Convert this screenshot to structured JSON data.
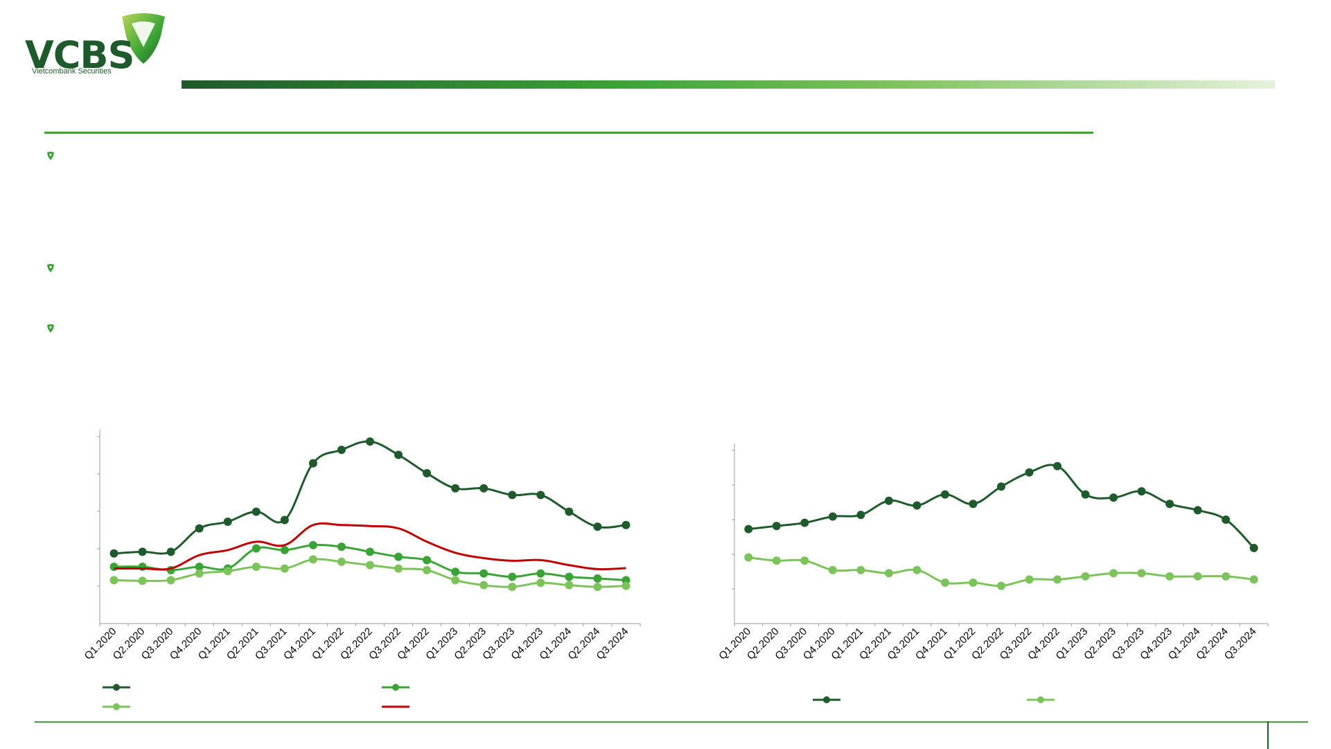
{
  "brand": {
    "logo_text": "VCBS",
    "logo_sub": "Vietcombank Securities",
    "colors": {
      "dark_green": "#1e5a2c",
      "green": "#3aa335",
      "light_green": "#7dc35b",
      "red": "#c00000"
    }
  },
  "bullets": [
    "shield-bullet-icon",
    "shield-bullet-icon",
    "shield-bullet-icon"
  ],
  "chart_data": [
    {
      "type": "line",
      "categories": [
        "Q1.2020",
        "Q2.2020",
        "Q3.2020",
        "Q4.2020",
        "Q1.2021",
        "Q2.2021",
        "Q3.2021",
        "Q4.2021",
        "Q1.2022",
        "Q2.2022",
        "Q3.2022",
        "Q4.2022",
        "Q1.2023",
        "Q2.2023",
        "Q3.2023",
        "Q4.2023",
        "Q1.2024",
        "Q2.2024",
        "Q3.2024"
      ],
      "ylim": [
        0,
        5.6
      ],
      "series": [
        {
          "color": "#1e5a2c",
          "marker": true,
          "values": [
            2.1,
            2.15,
            2.15,
            2.85,
            3.05,
            3.35,
            3.1,
            4.8,
            5.2,
            5.45,
            5.05,
            4.5,
            4.05,
            4.05,
            3.85,
            3.85,
            3.35,
            2.9,
            2.95
          ]
        },
        {
          "color": "#3aa335",
          "marker": true,
          "values": [
            1.7,
            1.7,
            1.6,
            1.7,
            1.65,
            2.25,
            2.2,
            2.35,
            2.3,
            2.15,
            2.0,
            1.9,
            1.55,
            1.5,
            1.4,
            1.5,
            1.4,
            1.35,
            1.3
          ]
        },
        {
          "color": "#7dc35b",
          "marker": true,
          "values": [
            1.3,
            1.28,
            1.3,
            1.5,
            1.57,
            1.7,
            1.65,
            1.92,
            1.85,
            1.75,
            1.65,
            1.6,
            1.3,
            1.15,
            1.1,
            1.22,
            1.15,
            1.1,
            1.13
          ]
        },
        {
          "color": "#c00000",
          "marker": false,
          "values": [
            1.65,
            1.65,
            1.65,
            2.05,
            2.2,
            2.45,
            2.35,
            2.95,
            2.95,
            2.92,
            2.85,
            2.45,
            2.12,
            1.96,
            1.88,
            1.9,
            1.75,
            1.63,
            1.66
          ]
        }
      ]
    },
    {
      "type": "line",
      "categories": [
        "Q1.2020",
        "Q2.2020",
        "Q3.2020",
        "Q4.2020",
        "Q1.2021",
        "Q2.2021",
        "Q3.2021",
        "Q4.2021",
        "Q1.2022",
        "Q2.2022",
        "Q3.2022",
        "Q4.2022",
        "Q1.2023",
        "Q2.2023",
        "Q3.2023",
        "Q4.2023",
        "Q1.2024",
        "Q2.2024",
        "Q3.2024"
      ],
      "ylim": [
        0,
        5.5
      ],
      "series": [
        {
          "color": "#1e5a2c",
          "marker": true,
          "values": [
            3.0,
            3.1,
            3.2,
            3.4,
            3.45,
            3.9,
            3.75,
            4.1,
            3.8,
            4.35,
            4.8,
            5.0,
            4.1,
            4.0,
            4.2,
            3.8,
            3.6,
            3.3,
            2.4
          ]
        },
        {
          "color": "#7dc35b",
          "marker": true,
          "values": [
            2.1,
            2.0,
            2.0,
            1.7,
            1.7,
            1.6,
            1.7,
            1.3,
            1.3,
            1.2,
            1.4,
            1.4,
            1.5,
            1.6,
            1.6,
            1.5,
            1.5,
            1.5,
            1.4
          ]
        }
      ]
    }
  ]
}
